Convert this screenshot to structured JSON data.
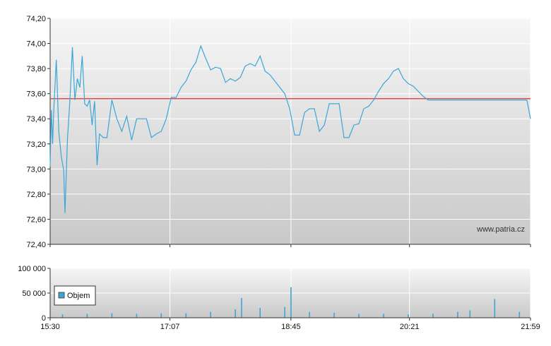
{
  "credit": "www.patria.cz",
  "colors": {
    "price_line": "#3ba6d6",
    "reference_line": "#e03030",
    "volume_bar": "#3ba6d6",
    "plot_bg_top": "#f6f6f6",
    "plot_bg_bottom": "#c9c9c9",
    "grid": "#ffffff",
    "axis": "#333333"
  },
  "chart_data": [
    {
      "type": "line",
      "name": "price",
      "x_ticks": [
        "15:30",
        "17:07",
        "18:45",
        "20:21",
        "21:59"
      ],
      "y_ticks": [
        "74,20",
        "74,00",
        "73,80",
        "73,60",
        "73,40",
        "73,20",
        "73,00",
        "72,80",
        "72,60",
        "72,40"
      ],
      "ylim": [
        72.4,
        74.2
      ],
      "xlim": [
        "15:30",
        "21:59"
      ],
      "reference_line": 73.56,
      "grid": true,
      "series": [
        {
          "x": [
            "15:30",
            "15:31",
            "15:32",
            "15:33",
            "15:35",
            "15:37",
            "15:39",
            "15:41",
            "15:42",
            "15:44",
            "15:46",
            "15:48",
            "15:50",
            "15:52",
            "15:54",
            "15:56",
            "15:58",
            "16:00",
            "16:02",
            "16:04",
            "16:06",
            "16:08",
            "16:10",
            "16:13",
            "16:16",
            "16:20",
            "16:24",
            "16:28",
            "16:32",
            "16:36",
            "16:40",
            "16:44",
            "16:48",
            "16:52",
            "16:56",
            "17:00",
            "17:04",
            "17:08",
            "17:12",
            "17:16",
            "17:20",
            "17:24",
            "17:28",
            "17:32",
            "17:36",
            "17:40",
            "17:44",
            "17:48",
            "17:52",
            "17:56",
            "18:00",
            "18:04",
            "18:08",
            "18:12",
            "18:16",
            "18:20",
            "18:24",
            "18:28",
            "18:32",
            "18:36",
            "18:40",
            "18:44",
            "18:48",
            "18:52",
            "18:56",
            "19:00",
            "19:04",
            "19:08",
            "19:12",
            "19:16",
            "19:20",
            "19:24",
            "19:28",
            "19:32",
            "19:36",
            "19:40",
            "19:44",
            "19:48",
            "19:52",
            "19:56",
            "20:00",
            "20:04",
            "20:08",
            "20:12",
            "20:16",
            "20:20",
            "20:24",
            "20:28",
            "20:32",
            "20:36",
            "20:40",
            "20:44",
            "20:48",
            "20:52",
            "20:56",
            "21:00",
            "21:04",
            "21:08",
            "21:12",
            "21:16",
            "21:20",
            "21:24",
            "21:28",
            "21:32",
            "21:36",
            "21:40",
            "21:44",
            "21:48",
            "21:52",
            "21:56",
            "21:59"
          ],
          "y": [
            73.02,
            73.47,
            73.2,
            73.48,
            73.87,
            73.3,
            73.1,
            72.99,
            72.65,
            73.24,
            73.55,
            73.97,
            73.55,
            73.72,
            73.65,
            73.9,
            73.52,
            73.5,
            73.55,
            73.35,
            73.54,
            73.03,
            73.28,
            73.25,
            73.25,
            73.55,
            73.4,
            73.3,
            73.42,
            73.23,
            73.4,
            73.4,
            73.4,
            73.25,
            73.28,
            73.3,
            73.4,
            73.57,
            73.57,
            73.65,
            73.7,
            73.79,
            73.85,
            73.98,
            73.88,
            73.79,
            73.81,
            73.8,
            73.69,
            73.72,
            73.7,
            73.73,
            73.82,
            73.84,
            73.82,
            73.9,
            73.78,
            73.75,
            73.7,
            73.65,
            73.6,
            73.48,
            73.27,
            73.27,
            73.45,
            73.48,
            73.48,
            73.3,
            73.35,
            73.52,
            73.52,
            73.52,
            73.25,
            73.25,
            73.35,
            73.36,
            73.48,
            73.5,
            73.55,
            73.62,
            73.68,
            73.72,
            73.78,
            73.8,
            73.72,
            73.68,
            73.66,
            73.62,
            73.58,
            73.55,
            73.55,
            73.55,
            73.55,
            73.55,
            73.55,
            73.55,
            73.55,
            73.55,
            73.55,
            73.55,
            73.55,
            73.55,
            73.55,
            73.55,
            73.55,
            73.55,
            73.55,
            73.55,
            73.55,
            73.55,
            73.4
          ]
        }
      ]
    },
    {
      "type": "bar",
      "name": "volume",
      "legend": "Objem",
      "legend_position": "left",
      "y_ticks": [
        "100 000",
        "50 000",
        "0"
      ],
      "ylim": [
        0,
        100000
      ],
      "grid": true,
      "x": [
        "15:40",
        "16:00",
        "16:20",
        "16:40",
        "17:00",
        "17:20",
        "17:40",
        "18:00",
        "18:05",
        "18:20",
        "18:40",
        "18:45",
        "19:00",
        "19:20",
        "19:40",
        "20:00",
        "20:20",
        "20:40",
        "21:00",
        "21:10",
        "21:30",
        "21:50"
      ],
      "values": [
        7000,
        8000,
        9000,
        8000,
        9000,
        9000,
        12000,
        17000,
        40000,
        20000,
        22000,
        62000,
        12000,
        10000,
        8000,
        8000,
        7000,
        8000,
        12000,
        15000,
        38000,
        12000
      ]
    }
  ]
}
